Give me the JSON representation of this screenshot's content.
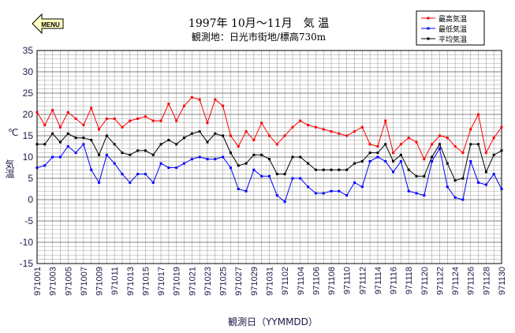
{
  "menu": {
    "label": "MENU"
  },
  "title": "1997年 10月～11月　気 温",
  "subtitle": "観測地：日光市街地/標高730m",
  "colors": {
    "max": "#ff0000",
    "min": "#0000ff",
    "avg": "#000000",
    "grid": "#a0a0a0",
    "axis_text": "#1a1a4a",
    "menu_fill": "#ffffc0"
  },
  "chart_data": {
    "type": "line",
    "title": "1997年 10月～11月　気 温",
    "xlabel": "観測日（YYMMDD）",
    "ylabel": "気温",
    "yunit": "℃",
    "ylim": [
      -15,
      35
    ],
    "yticks": [
      -15,
      -10,
      -5,
      0,
      5,
      10,
      15,
      20,
      25,
      30,
      35
    ],
    "grid": true,
    "legend_position": "top-right",
    "x": [
      "971001",
      "971002",
      "971003",
      "971004",
      "971005",
      "971006",
      "971007",
      "971008",
      "971009",
      "971010",
      "971011",
      "971012",
      "971013",
      "971014",
      "971015",
      "971016",
      "971017",
      "971018",
      "971019",
      "971020",
      "971021",
      "971022",
      "971023",
      "971024",
      "971025",
      "971026",
      "971027",
      "971028",
      "971029",
      "971030",
      "971031",
      "971101",
      "971102",
      "971103",
      "971104",
      "971105",
      "971106",
      "971107",
      "971108",
      "971109",
      "971110",
      "971111",
      "971112",
      "971113",
      "971114",
      "971115",
      "971116",
      "971117",
      "971118",
      "971119",
      "971120",
      "971121",
      "971122",
      "971123",
      "971124",
      "971125",
      "971126",
      "971127",
      "971128",
      "971129",
      "971130"
    ],
    "xtick_labels": [
      "971001",
      "971003",
      "971005",
      "971007",
      "971009",
      "971011",
      "971013",
      "971015",
      "971017",
      "971019",
      "971021",
      "971023",
      "971025",
      "971027",
      "971029",
      "971031",
      "971102",
      "971104",
      "971106",
      "971108",
      "971110",
      "971112",
      "971114",
      "971116",
      "971118",
      "971120",
      "971122",
      "971124",
      "971126",
      "971128",
      "971130"
    ],
    "series": [
      {
        "name": "最高気温",
        "color": "#ff0000",
        "values": [
          20.5,
          17.5,
          21.0,
          17.0,
          20.5,
          19.0,
          17.5,
          21.5,
          16.5,
          19.0,
          19.0,
          17.0,
          18.5,
          19.0,
          19.5,
          18.5,
          18.5,
          22.5,
          18.5,
          22.0,
          24.0,
          23.5,
          18.0,
          23.5,
          22.0,
          15.0,
          12.5,
          16.0,
          14.0,
          18.0,
          15.0,
          13.0,
          15.0,
          17.0,
          18.5,
          17.5,
          17.0,
          16.5,
          16.0,
          15.5,
          15.0,
          16.0,
          17.0,
          13.0,
          12.5,
          18.5,
          11.0,
          13.0,
          14.5,
          13.5,
          9.5,
          13.0,
          15.0,
          14.5,
          12.5,
          11.0,
          16.5,
          20.0,
          11.0,
          14.5,
          17.0
        ]
      },
      {
        "name": "最低気温",
        "color": "#0000ff",
        "values": [
          7.5,
          8.0,
          10.0,
          10.0,
          12.5,
          11.0,
          13.0,
          7.0,
          4.0,
          10.5,
          8.5,
          6.0,
          4.0,
          6.0,
          6.0,
          4.0,
          8.5,
          7.5,
          7.5,
          8.5,
          9.5,
          10.0,
          9.5,
          9.5,
          10.0,
          7.5,
          2.5,
          2.0,
          7.0,
          5.5,
          5.5,
          1.0,
          -0.5,
          5.0,
          5.0,
          3.0,
          1.5,
          1.5,
          2.0,
          2.0,
          1.0,
          4.0,
          3.0,
          9.0,
          10.0,
          9.0,
          6.5,
          9.0,
          2.0,
          1.5,
          1.0,
          9.0,
          12.0,
          3.0,
          0.5,
          0.0,
          9.0,
          4.0,
          3.5,
          6.0,
          2.5
        ]
      },
      {
        "name": "平均気温",
        "color": "#000000",
        "values": [
          13.0,
          13.0,
          15.5,
          13.5,
          15.5,
          14.5,
          14.5,
          14.0,
          10.5,
          15.0,
          13.0,
          11.0,
          10.5,
          11.5,
          11.5,
          10.5,
          13.0,
          14.0,
          13.0,
          14.5,
          15.5,
          16.0,
          13.5,
          15.5,
          15.0,
          11.0,
          8.0,
          8.5,
          10.5,
          10.5,
          9.5,
          6.0,
          6.0,
          10.0,
          10.0,
          8.5,
          7.0,
          7.0,
          7.0,
          7.0,
          7.0,
          8.5,
          9.0,
          11.0,
          11.0,
          13.0,
          9.0,
          10.5,
          7.0,
          5.5,
          5.5,
          10.0,
          13.0,
          8.5,
          4.5,
          5.0,
          13.0,
          13.0,
          6.5,
          10.5,
          11.5
        ]
      }
    ]
  }
}
